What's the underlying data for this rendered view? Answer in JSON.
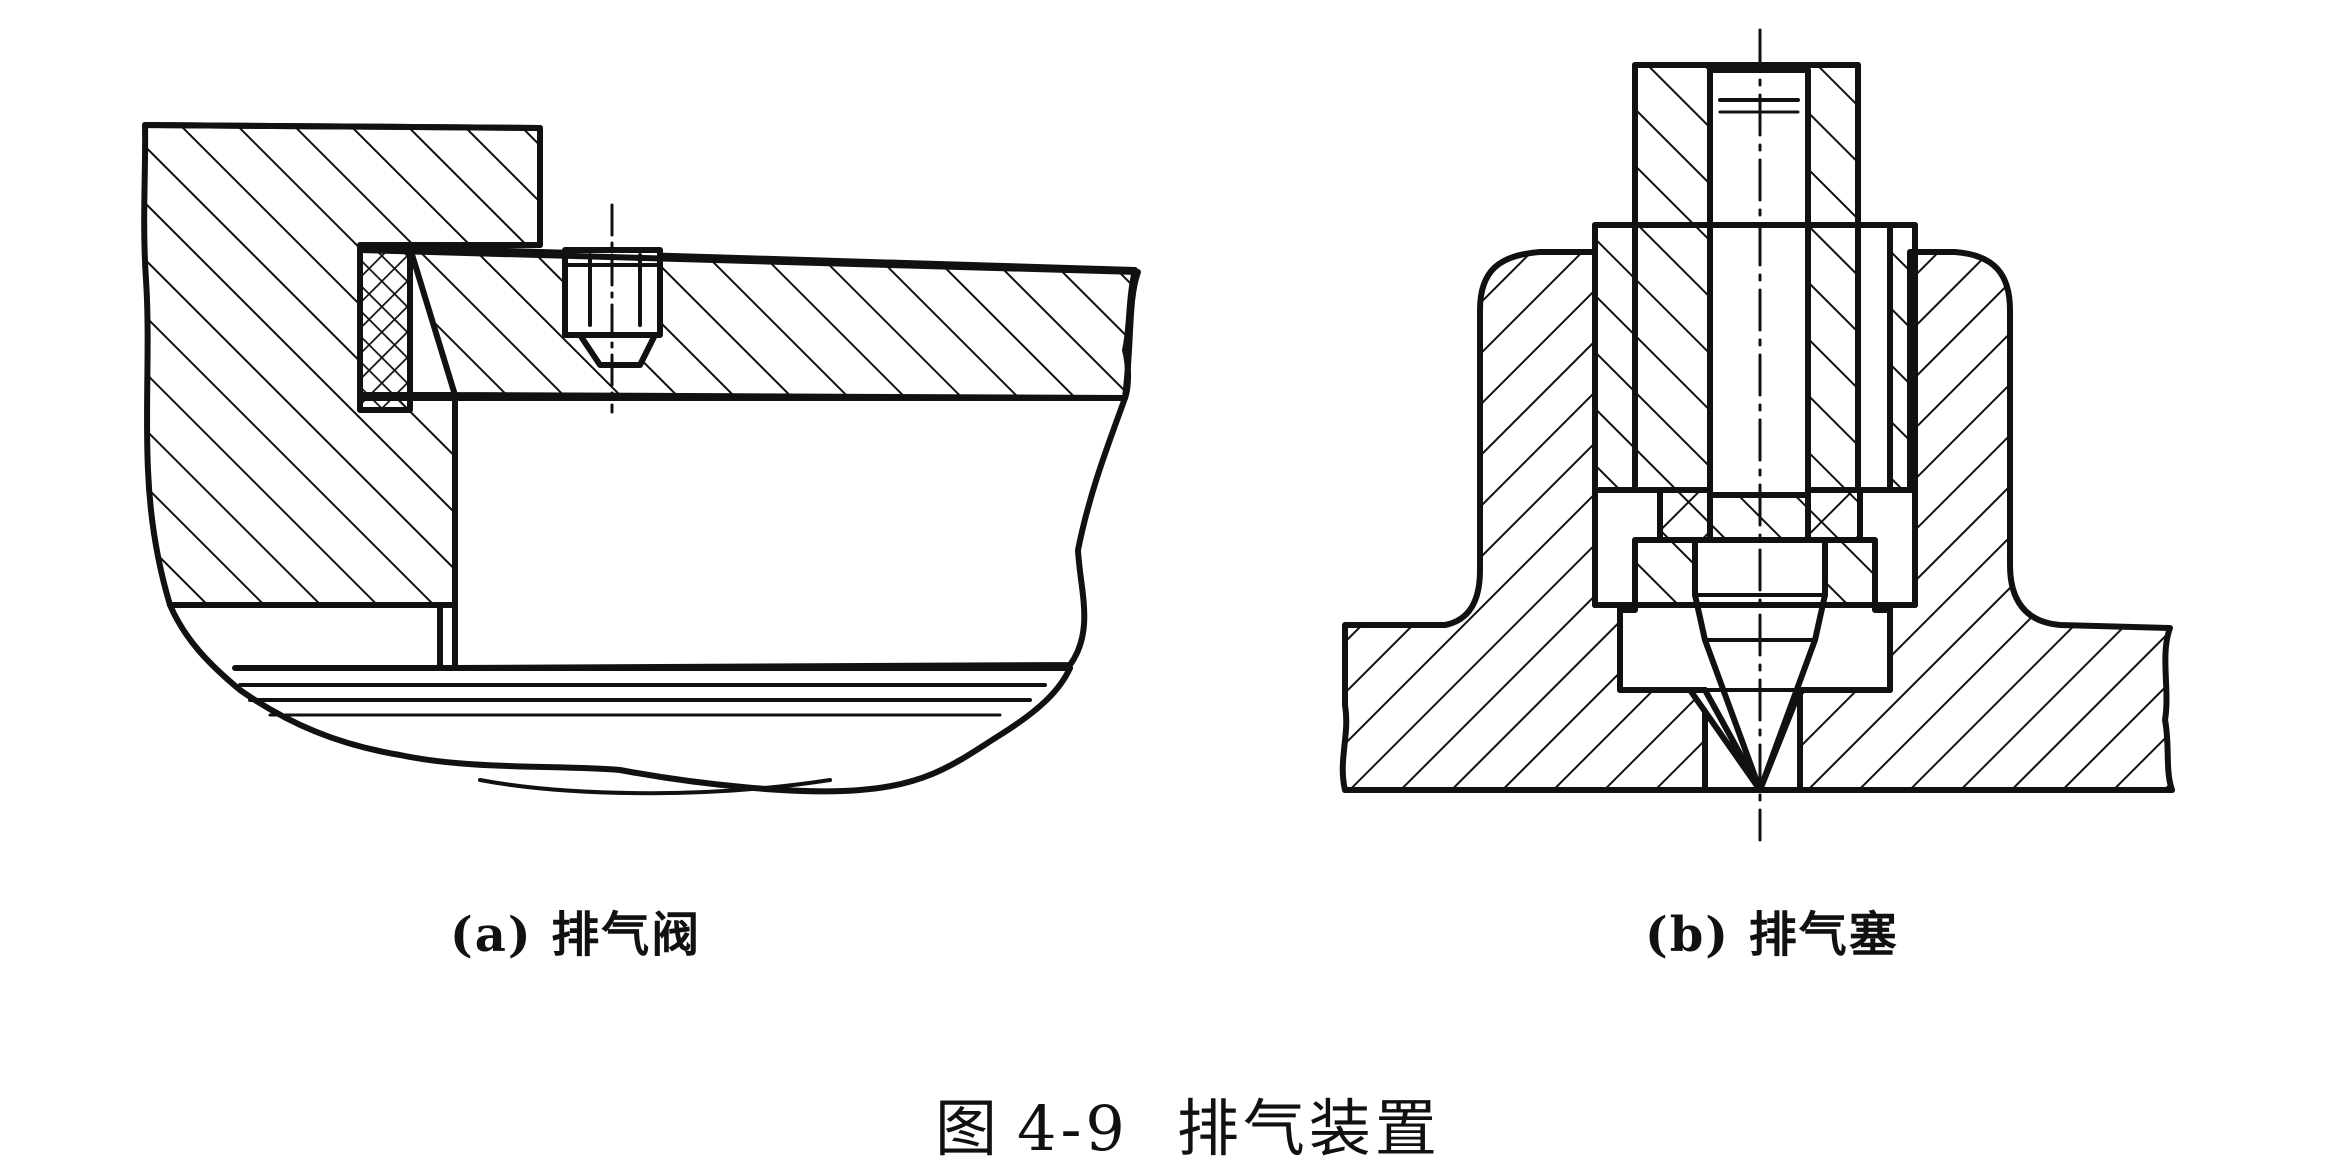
{
  "subfigures": [
    {
      "id": "a",
      "label": "(a)",
      "caption": "排气阀"
    },
    {
      "id": "b",
      "label": "(b)",
      "caption": "排气塞"
    }
  ],
  "figure": {
    "prefix": "图",
    "number": "4-9",
    "title": "排气装置"
  }
}
